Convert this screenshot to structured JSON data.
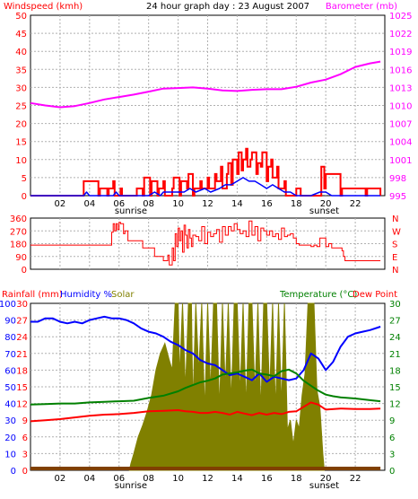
{
  "title": "24 hour graph day : 23 August 2007",
  "colors": {
    "frame": "#000000",
    "grid": "#b0b0b0",
    "wind": "#ff0000",
    "wind_avg": "#0000ff",
    "barometer": "#ff00ff",
    "direction": "#ff0000",
    "rain_label": "#ff0000",
    "humidity": "#0000ff",
    "solar": "#808000",
    "temperature": "#008000",
    "dewpoint": "#ff0000",
    "rain": "#804000"
  },
  "x_axis": {
    "hour_labels": [
      "02",
      "04",
      "06",
      "08",
      "10",
      "12",
      "14",
      "16",
      "18",
      "20",
      "22"
    ],
    "sunrise_label": "sunrise",
    "sunset_label": "sunset",
    "sunrise_hour": 6.8,
    "sunset_hour": 19.9
  },
  "chart_data": [
    {
      "type": "line",
      "panel": "wind_barometer",
      "left_label": "Windspeed (kmh)",
      "right_label": "Barometer (mb)",
      "left_ticks": [
        "0",
        "5",
        "10",
        "15",
        "20",
        "25",
        "30",
        "35",
        "40",
        "45",
        "50"
      ],
      "right_ticks": [
        "995",
        "998",
        "1001",
        "1004",
        "1007",
        "1010",
        "1013",
        "1016",
        "1019",
        "1022",
        "1025"
      ],
      "ylim_left": [
        0,
        50
      ],
      "ylim_right": [
        995,
        1025
      ],
      "series": [
        {
          "key": "barometer",
          "axis": "right",
          "x": [
            0,
            1,
            2,
            3,
            4,
            5,
            6,
            7,
            8,
            9,
            10,
            11,
            12,
            13,
            14,
            15,
            16,
            17,
            18,
            19,
            20,
            21,
            22,
            23,
            23.7
          ],
          "values": [
            1010.4,
            1010.0,
            1009.7,
            1009.9,
            1010.4,
            1011.0,
            1011.4,
            1011.8,
            1012.3,
            1012.8,
            1012.9,
            1013.0,
            1012.8,
            1012.5,
            1012.4,
            1012.6,
            1012.7,
            1012.7,
            1013.1,
            1013.8,
            1014.3,
            1015.2,
            1016.4,
            1017.0,
            1017.3
          ]
        },
        {
          "key": "wind",
          "axis": "left",
          "x": [
            0,
            3.5,
            3.6,
            4.6,
            4.7,
            5.2,
            5.3,
            5.6,
            5.7,
            6.1,
            6.2,
            7.1,
            7.2,
            7.6,
            7.7,
            8.1,
            8.2,
            8.6,
            8.7,
            9.0,
            9.1,
            9.6,
            9.7,
            10.1,
            10.2,
            10.6,
            10.7,
            11.0,
            11.1,
            11.5,
            11.6,
            12.0,
            12.1,
            12.5,
            12.6,
            12.9,
            13.0,
            13.3,
            13.4,
            13.6,
            13.7,
            14.0,
            14.1,
            14.3,
            14.4,
            14.6,
            14.7,
            14.9,
            15.0,
            15.3,
            15.4,
            15.6,
            15.7,
            16.0,
            16.1,
            16.3,
            16.4,
            16.7,
            16.8,
            17.2,
            17.3,
            17.5,
            17.6,
            17.9,
            18.0,
            18.3,
            18.4,
            19.6,
            19.7,
            19.9,
            20.0,
            21.0,
            21.1,
            22.7,
            22.8,
            23.7
          ],
          "values": [
            0,
            0,
            4,
            0,
            2,
            0,
            2,
            4,
            0,
            2,
            0,
            0,
            2,
            0,
            5,
            0,
            4,
            0,
            2,
            4,
            0,
            2,
            5,
            0,
            4,
            2,
            6,
            0,
            2,
            4,
            2,
            5,
            2,
            6,
            4,
            8,
            2,
            6,
            9,
            3,
            10,
            6,
            12,
            7,
            10,
            13,
            8,
            10,
            12,
            6,
            9,
            8,
            12,
            4,
            8,
            10,
            5,
            8,
            2,
            4,
            0,
            0,
            0,
            0,
            2,
            0,
            0,
            0,
            8,
            2,
            6,
            0,
            2,
            0,
            2,
            0
          ]
        },
        {
          "key": "wind_avg",
          "axis": "left",
          "x": [
            0,
            3.6,
            3.8,
            4.0,
            4.8,
            5.6,
            5.8,
            6.0,
            8.0,
            8.4,
            8.8,
            9.0,
            9.8,
            10.4,
            10.8,
            11.2,
            11.8,
            12.2,
            12.8,
            13.2,
            13.6,
            14.0,
            14.4,
            14.8,
            15.2,
            15.6,
            16.0,
            16.4,
            16.8,
            17.2,
            17.6,
            18.0,
            19.0,
            19.6,
            20.0,
            20.4,
            23.7
          ],
          "values": [
            0,
            0,
            1,
            0,
            0,
            0,
            1,
            0,
            0,
            1,
            0,
            1,
            1,
            1,
            2,
            1,
            2,
            1,
            2,
            3,
            3,
            4,
            5,
            4,
            4,
            3,
            2,
            3,
            2,
            1,
            1,
            0,
            0,
            1,
            1,
            0,
            0
          ]
        }
      ]
    },
    {
      "type": "line",
      "panel": "wind_direction",
      "left_ticks": [
        "0",
        "90",
        "180",
        "270",
        "360"
      ],
      "right_ticks": [
        "N",
        "E",
        "S",
        "W",
        "N"
      ],
      "ylim": [
        0,
        360
      ],
      "series": [
        {
          "key": "direction",
          "x": [
            0,
            5.4,
            5.5,
            5.6,
            5.7,
            5.8,
            5.9,
            6.0,
            6.1,
            6.3,
            6.4,
            6.6,
            6.8,
            7.5,
            7.6,
            8.3,
            8.4,
            8.9,
            9.0,
            9.3,
            9.4,
            9.6,
            9.7,
            9.8,
            9.9,
            10.0,
            10.1,
            10.2,
            10.3,
            10.4,
            10.5,
            10.6,
            10.7,
            10.8,
            10.9,
            11.0,
            11.2,
            11.4,
            11.6,
            11.8,
            12.0,
            12.2,
            12.4,
            12.6,
            12.8,
            13.0,
            13.2,
            13.4,
            13.6,
            13.8,
            14.0,
            14.2,
            14.4,
            14.6,
            14.8,
            15.0,
            15.2,
            15.4,
            15.6,
            15.8,
            16.0,
            16.2,
            16.4,
            16.6,
            16.8,
            17.0,
            17.2,
            17.4,
            17.6,
            17.8,
            18.0,
            18.2,
            18.4,
            19.0,
            19.2,
            19.4,
            19.6,
            20.0,
            20.2,
            20.4,
            21.0,
            21.1,
            21.2,
            21.3,
            21.4,
            22.0,
            23.7
          ],
          "values": [
            170,
            170,
            260,
            320,
            270,
            320,
            280,
            330,
            320,
            250,
            270,
            200,
            200,
            200,
            150,
            150,
            90,
            90,
            60,
            100,
            30,
            150,
            60,
            250,
            160,
            290,
            200,
            270,
            120,
            310,
            240,
            150,
            280,
            220,
            160,
            240,
            230,
            200,
            300,
            180,
            260,
            230,
            250,
            280,
            190,
            300,
            240,
            300,
            270,
            320,
            280,
            250,
            270,
            230,
            340,
            240,
            300,
            200,
            290,
            270,
            240,
            270,
            230,
            250,
            210,
            290,
            230,
            240,
            250,
            220,
            180,
            170,
            170,
            160,
            170,
            160,
            220,
            160,
            180,
            150,
            150,
            130,
            90,
            60,
            60,
            60,
            60
          ]
        }
      ]
    },
    {
      "type": "line",
      "panel": "rain_humidity_solar_temperature",
      "labels": {
        "rainfall": "Rainfall (mm)",
        "humidity": "Humidity %",
        "solar": "Solar",
        "temperature": "Temperature (°C)",
        "dewpoint": "Dew Point"
      },
      "left_ticks": [
        "0",
        "10",
        "20",
        "30",
        "40",
        "50",
        "60",
        "70",
        "80",
        "90",
        "100"
      ],
      "left_ticks_alt": [
        "0",
        "3",
        "6",
        "9",
        "12",
        "15",
        "18",
        "21",
        "24",
        "27",
        "30"
      ],
      "right_ticks": [
        "0",
        "3",
        "6",
        "9",
        "12",
        "15",
        "18",
        "21",
        "24",
        "27",
        "30"
      ],
      "ylim_left": [
        0,
        100
      ],
      "ylim_right": [
        0,
        30
      ],
      "series": [
        {
          "key": "solar",
          "axis": "left",
          "type": "area",
          "x": [
            6.7,
            6.8,
            7.0,
            7.3,
            7.6,
            7.9,
            8.2,
            8.5,
            8.8,
            9.1,
            9.4,
            9.6,
            9.8,
            10.0,
            10.1,
            10.3,
            10.5,
            10.7,
            10.9,
            11.0,
            11.2,
            11.4,
            11.6,
            11.8,
            12.0,
            12.2,
            12.4,
            12.6,
            12.8,
            13.0,
            13.2,
            13.4,
            13.6,
            13.8,
            14.0,
            14.2,
            14.4,
            14.6,
            14.8,
            15.0,
            15.2,
            15.4,
            15.6,
            15.8,
            16.0,
            16.2,
            16.4,
            16.6,
            16.8,
            17.0,
            17.2,
            17.4,
            17.6,
            17.8,
            18.0,
            18.2,
            18.4,
            18.6,
            18.8,
            19.0,
            19.2,
            19.4,
            19.6,
            19.8,
            19.9
          ],
          "values": [
            0,
            4,
            10,
            20,
            27,
            35,
            45,
            60,
            70,
            76,
            66,
            60,
            100,
            100,
            55,
            100,
            48,
            100,
            100,
            38,
            100,
            58,
            100,
            35,
            100,
            47,
            100,
            100,
            36,
            100,
            48,
            100,
            40,
            100,
            100,
            45,
            100,
            37,
            100,
            100,
            45,
            100,
            35,
            100,
            100,
            45,
            100,
            36,
            100,
            38,
            100,
            24,
            30,
            15,
            30,
            25,
            45,
            58,
            100,
            100,
            100,
            48,
            38,
            10,
            0
          ]
        },
        {
          "key": "humidity",
          "axis": "left",
          "x": [
            0,
            0.5,
            1.0,
            1.5,
            2.0,
            2.5,
            3.0,
            3.5,
            4.0,
            4.5,
            5.0,
            5.5,
            6.0,
            6.5,
            7.0,
            7.5,
            8.0,
            8.5,
            9.0,
            9.5,
            10.0,
            10.5,
            11.0,
            11.5,
            12.0,
            12.5,
            13.0,
            13.5,
            14.0,
            14.5,
            15.0,
            15.5,
            16.0,
            16.5,
            17.0,
            17.5,
            18.0,
            18.5,
            19.0,
            19.5,
            20.0,
            20.5,
            21.0,
            21.5,
            22.0,
            22.5,
            23.0,
            23.7
          ],
          "values": [
            89,
            89,
            91,
            91,
            89,
            88,
            89,
            88,
            90,
            91,
            92,
            91,
            91,
            90,
            88,
            85,
            83,
            82,
            80,
            77,
            75,
            72,
            70,
            66,
            64,
            63,
            60,
            57,
            58,
            56,
            54,
            58,
            53,
            56,
            55,
            54,
            55,
            60,
            70,
            67,
            60,
            65,
            74,
            80,
            82,
            83,
            84,
            86
          ]
        },
        {
          "key": "temperature",
          "axis": "right",
          "x": [
            0,
            1.0,
            2.0,
            3.0,
            4.0,
            5.0,
            6.0,
            7.0,
            8.0,
            9.0,
            10.0,
            10.5,
            11.0,
            11.5,
            12.0,
            12.5,
            13.0,
            13.5,
            14.0,
            14.5,
            15.0,
            15.5,
            16.0,
            16.5,
            17.0,
            17.5,
            18.0,
            18.5,
            19.0,
            19.5,
            20.0,
            20.5,
            21.0,
            22.0,
            23.0,
            23.7
          ],
          "values": [
            11.8,
            11.9,
            12.0,
            12.0,
            12.2,
            12.3,
            12.4,
            12.5,
            13.0,
            13.4,
            14.2,
            14.8,
            15.3,
            15.8,
            16.1,
            16.5,
            17.2,
            17.4,
            17.6,
            17.9,
            18.1,
            17.4,
            17.2,
            16.9,
            17.8,
            18.1,
            17.4,
            16.1,
            15.2,
            14.3,
            13.6,
            13.3,
            13.1,
            12.9,
            12.6,
            12.4
          ]
        },
        {
          "key": "dewpoint",
          "axis": "right",
          "x": [
            0,
            1.0,
            2.0,
            3.0,
            4.0,
            5.0,
            6.0,
            7.0,
            8.0,
            9.0,
            10.0,
            10.5,
            11.0,
            11.5,
            12.0,
            12.5,
            13.0,
            13.5,
            14.0,
            14.5,
            15.0,
            15.5,
            16.0,
            16.5,
            17.0,
            17.5,
            18.0,
            18.5,
            19.0,
            19.5,
            20.0,
            21.0,
            22.0,
            23.0,
            23.7
          ],
          "values": [
            8.8,
            9.0,
            9.2,
            9.5,
            9.8,
            10.0,
            10.1,
            10.3,
            10.6,
            10.7,
            10.8,
            10.6,
            10.5,
            10.3,
            10.3,
            10.5,
            10.3,
            10.0,
            10.5,
            10.2,
            9.9,
            10.3,
            10.0,
            10.3,
            10.1,
            10.5,
            10.6,
            11.4,
            12.2,
            11.8,
            10.9,
            11.1,
            11.0,
            11.0,
            11.1
          ]
        },
        {
          "key": "rain",
          "axis": "left",
          "x": [
            0,
            23.7
          ],
          "values": [
            0,
            0
          ]
        }
      ]
    }
  ]
}
